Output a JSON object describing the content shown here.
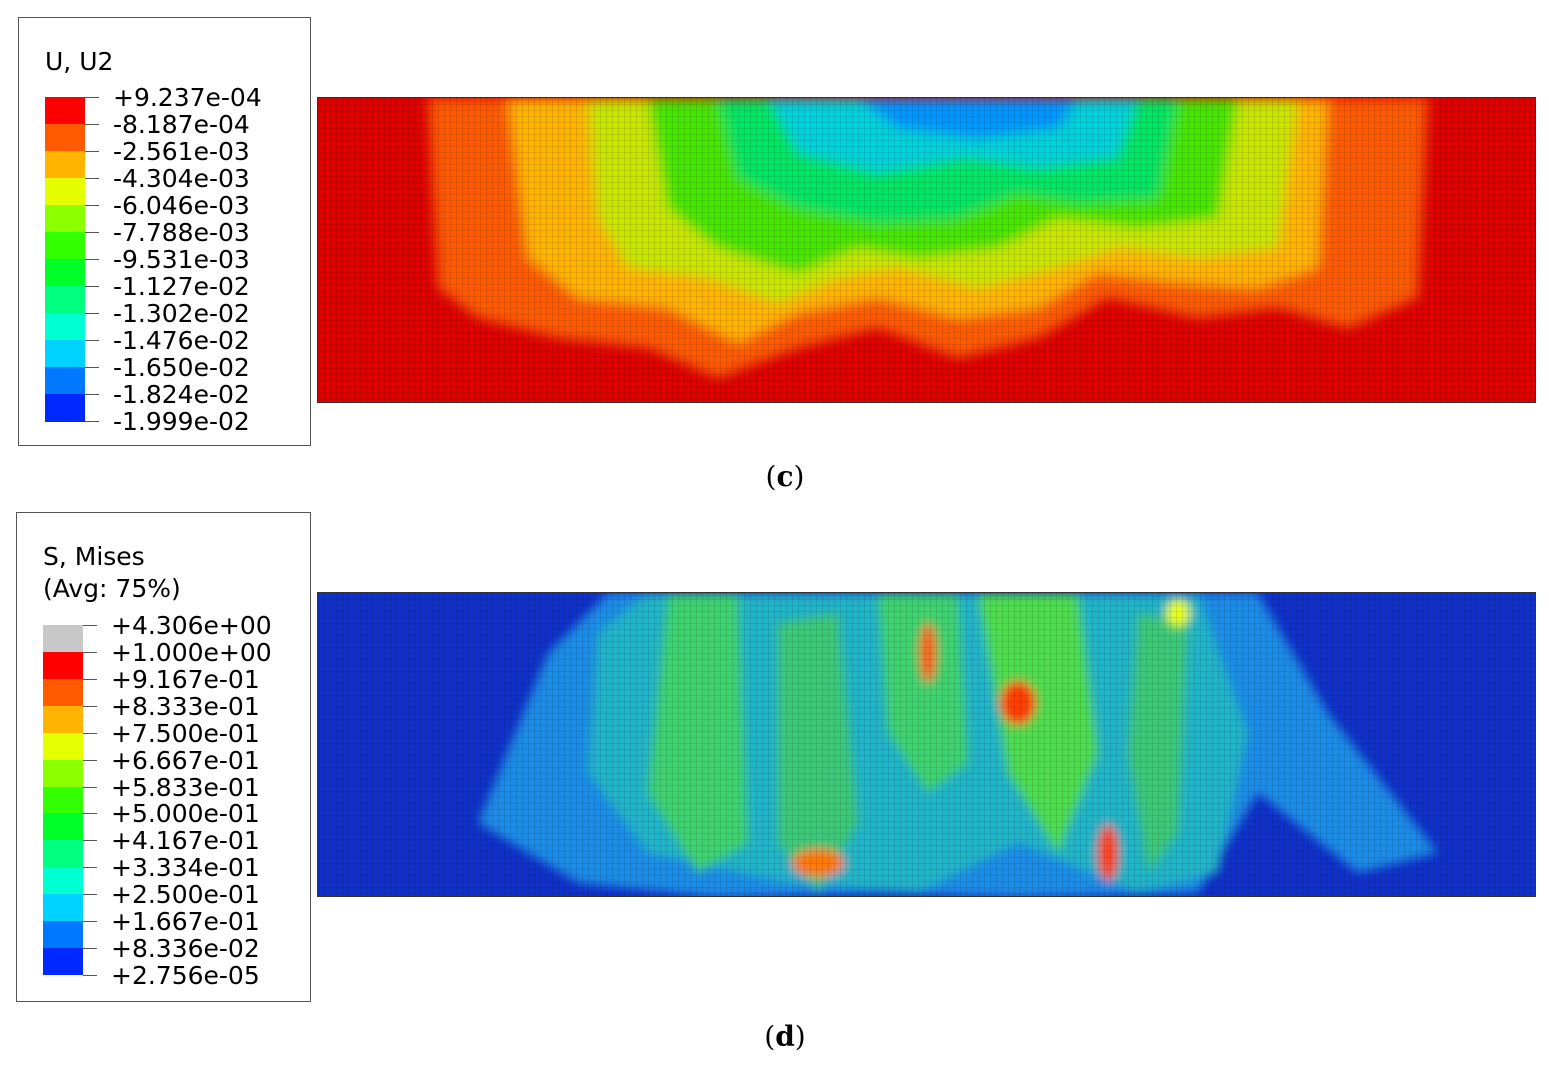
{
  "panels": [
    {
      "id": "c",
      "legend": {
        "title_lines": [
          "U, U2"
        ],
        "values": [
          "+9.237e-04",
          "-8.187e-04",
          "-2.561e-03",
          "-4.304e-03",
          "-6.046e-03",
          "-7.788e-03",
          "-9.531e-03",
          "-1.127e-02",
          "-1.302e-02",
          "-1.476e-02",
          "-1.650e-02",
          "-1.824e-02",
          "-1.999e-02"
        ],
        "colors": [
          "#ff0000",
          "#ff5a00",
          "#ffb400",
          "#e6ff00",
          "#8cff00",
          "#32ff00",
          "#00ff28",
          "#00ff80",
          "#00ffd2",
          "#00d2ff",
          "#0078ff",
          "#0028ff"
        ]
      },
      "caption": "c"
    },
    {
      "id": "d",
      "legend": {
        "title_lines": [
          "S, Mises",
          "(Avg: 75%)"
        ],
        "values": [
          "+4.306e+00",
          "+1.000e+00",
          "+9.167e-01",
          "+8.333e-01",
          "+7.500e-01",
          "+6.667e-01",
          "+5.833e-01",
          "+5.000e-01",
          "+4.167e-01",
          "+3.334e-01",
          "+2.500e-01",
          "+1.667e-01",
          "+8.336e-02",
          "+2.756e-05"
        ],
        "colors": [
          "#c8c8c8",
          "#ff0000",
          "#ff5a00",
          "#ffb400",
          "#e6ff00",
          "#8cff00",
          "#32ff00",
          "#00ff28",
          "#00ff80",
          "#00ffd2",
          "#00d2ff",
          "#0078ff",
          "#0028ff"
        ]
      },
      "caption": "d"
    }
  ]
}
